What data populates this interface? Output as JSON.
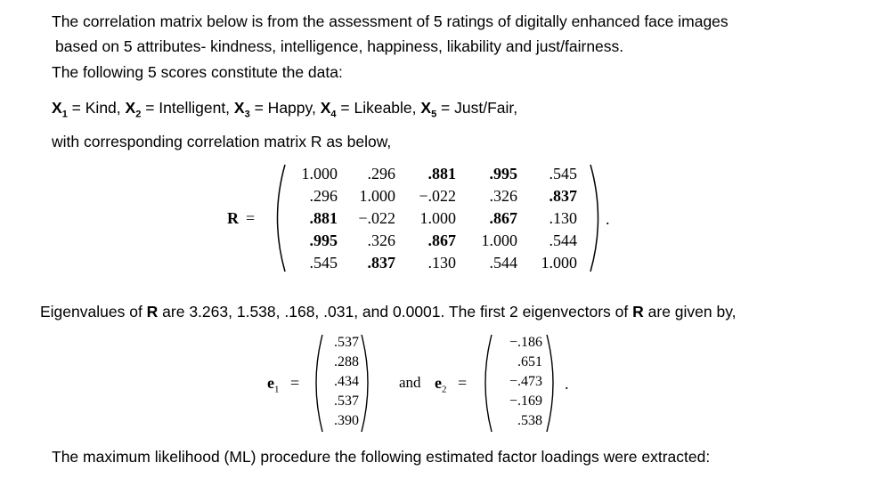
{
  "intro": {
    "line1": "The correlation matrix below is from the assessment of 5 ratings of digitally enhanced face images",
    "line2": "based on 5 attributes- kindness, intelligence, happiness, likability and just/fairness.",
    "line3": "The following 5 scores constitute the data:"
  },
  "variables": [
    {
      "sym": "X",
      "sub": "1",
      "name": "Kind"
    },
    {
      "sym": "X",
      "sub": "2",
      "name": "Intelligent"
    },
    {
      "sym": "X",
      "sub": "3",
      "name": "Happy"
    },
    {
      "sym": "X",
      "sub": "4",
      "name": "Likeable"
    },
    {
      "sym": "X",
      "sub": "5",
      "name": "Just/Fair"
    }
  ],
  "corr_intro": "with corresponding correlation matrix R as below,",
  "matrix": {
    "label": "R",
    "eq": "=",
    "end": ".",
    "rows": [
      [
        {
          "v": "1.000",
          "b": false
        },
        {
          "v": ".296",
          "b": false
        },
        {
          "v": ".881",
          "b": true
        },
        {
          "v": ".995",
          "b": true
        },
        {
          "v": ".545",
          "b": false
        }
      ],
      [
        {
          "v": ".296",
          "b": false
        },
        {
          "v": "1.000",
          "b": false
        },
        {
          "v": "−.022",
          "b": false
        },
        {
          "v": ".326",
          "b": false
        },
        {
          "v": ".837",
          "b": true
        }
      ],
      [
        {
          "v": ".881",
          "b": true
        },
        {
          "v": "−.022",
          "b": false
        },
        {
          "v": "1.000",
          "b": false
        },
        {
          "v": ".867",
          "b": true
        },
        {
          "v": ".130",
          "b": false
        }
      ],
      [
        {
          "v": ".995",
          "b": true
        },
        {
          "v": ".326",
          "b": false
        },
        {
          "v": ".867",
          "b": true
        },
        {
          "v": "1.000",
          "b": false
        },
        {
          "v": ".544",
          "b": false
        }
      ],
      [
        {
          "v": ".545",
          "b": false
        },
        {
          "v": ".837",
          "b": true
        },
        {
          "v": ".130",
          "b": false
        },
        {
          "v": ".544",
          "b": false
        },
        {
          "v": "1.000",
          "b": false
        }
      ]
    ]
  },
  "eigen": {
    "prefix": "Eigenvalues of ",
    "R1": "R",
    "mid": " are 3.263, 1.538, .168, .031, and 0.0001. The first 2 eigenvectors of ",
    "R2": "R",
    "suffix": " are given by,"
  },
  "vectors": {
    "e1_label": "e",
    "e1_sub": "1",
    "e1_eq": "=",
    "e1": [
      ".537",
      ".288",
      ".434",
      ".537",
      ".390"
    ],
    "and": "and",
    "e2_label": "e",
    "e2_sub": "2",
    "e2_eq": "=",
    "e2": [
      "−.186",
      ".651",
      "−.473",
      "−.169",
      ".538"
    ],
    "end": "."
  },
  "ml_text": "The maximum likelihood (ML) procedure the following estimated factor loadings were extracted:"
}
